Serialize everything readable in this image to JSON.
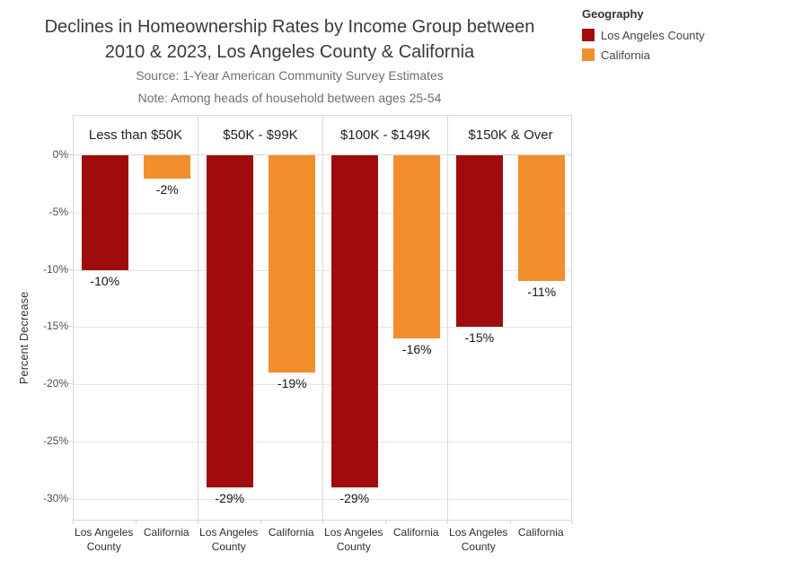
{
  "header": {
    "title_line1": "Declines in Homeownership Rates by Income Group between",
    "title_line2": "2010 & 2023, Los Angeles County & California",
    "source_note": "Source: 1-Year American Community Survey Estimates",
    "age_note": "Note: Among heads of household between ages 25-54"
  },
  "legend": {
    "title": "Geography",
    "items": [
      {
        "label": "Los Angeles County",
        "color": "#A00C0C"
      },
      {
        "label": "California",
        "color": "#F28E2B"
      }
    ]
  },
  "chart_data": {
    "type": "bar",
    "title": "Declines in Homeownership Rates by Income Group between 2010 & 2023, Los Angeles County & California",
    "subtitle_lines": [
      "Source: 1-Year American Community Survey Estimates",
      "Note: Among heads of household between ages 25-54"
    ],
    "facets": [
      "Less than $50K",
      "$50K - $99K",
      "$100K - $149K",
      "$150K & Over"
    ],
    "series": [
      {
        "name": "Los Angeles County",
        "color": "#A00C0C",
        "values": [
          -10,
          -29,
          -29,
          -15
        ]
      },
      {
        "name": "California",
        "color": "#F28E2B",
        "values": [
          -2,
          -19,
          -16,
          -11
        ]
      }
    ],
    "value_label_format": "{value}%",
    "xlabel": "",
    "ylabel": "Percent Decrease",
    "x_axis_labels": [
      "Los Angeles County",
      "California"
    ],
    "yticks": [
      0,
      -5,
      -10,
      -15,
      -20,
      -25,
      -30
    ],
    "ytick_labels": [
      "0%",
      "-5%",
      "-10%",
      "-15%",
      "-20%",
      "-25%",
      "-30%"
    ],
    "ylim": [
      -32,
      0
    ],
    "grid": true,
    "legend_position": "top-right",
    "colors": {
      "grid": "#e5e5e5",
      "border": "#d9d9d9",
      "title": "#3a3a3a",
      "subtitle": "#6f6f6f"
    }
  }
}
